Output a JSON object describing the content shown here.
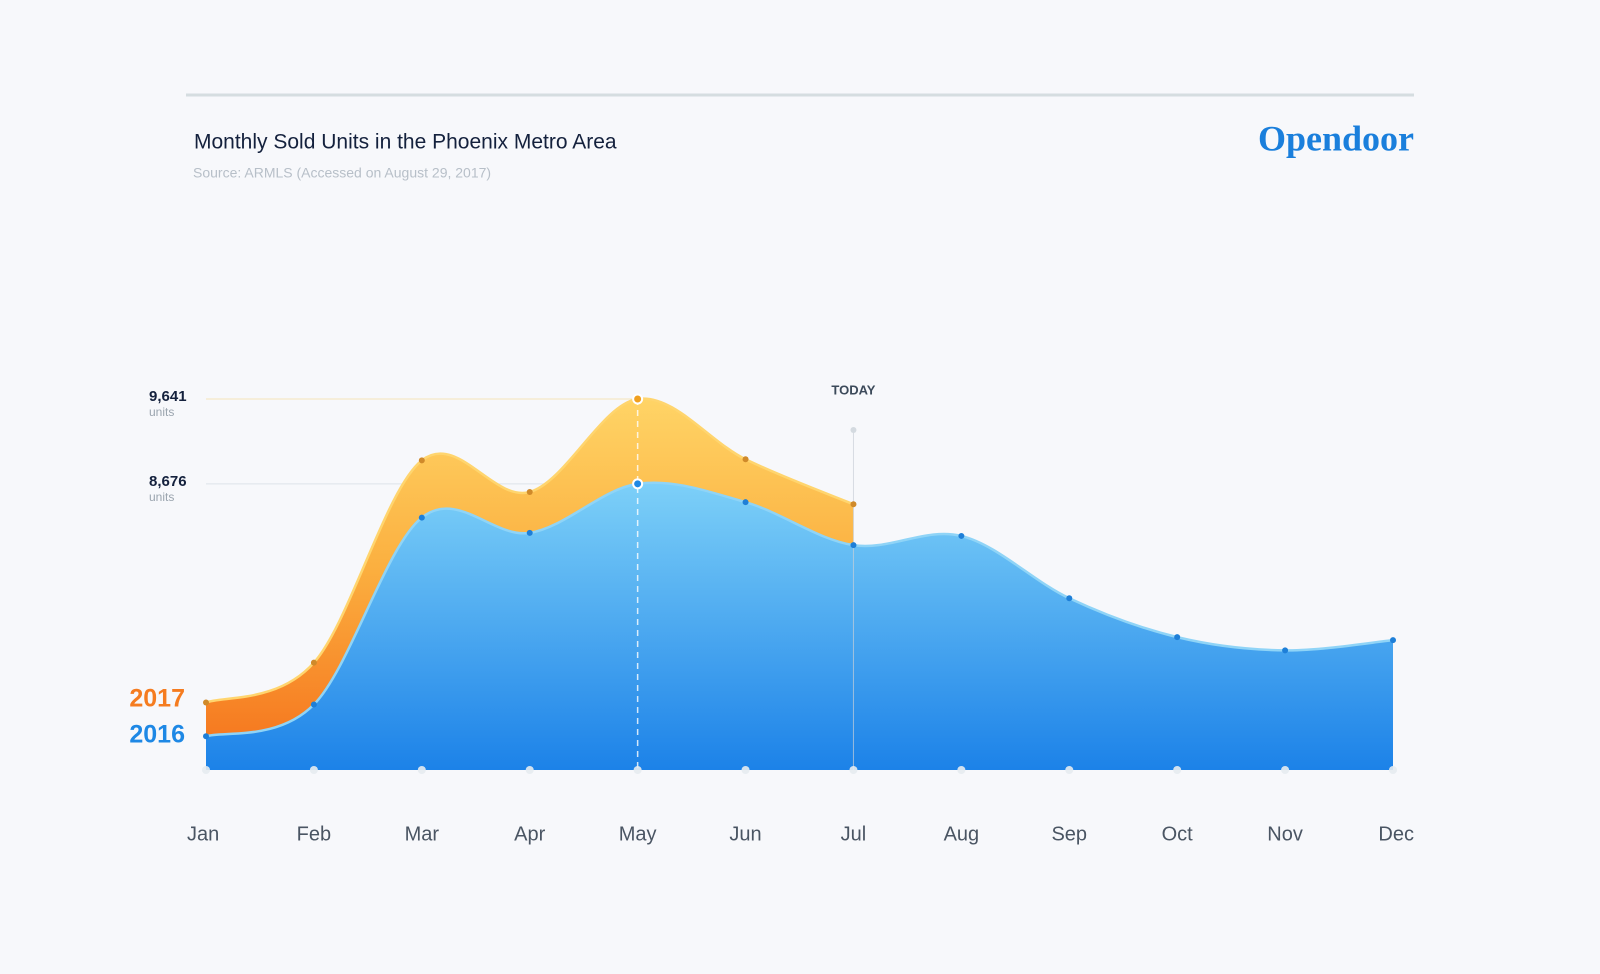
{
  "chart_data": {
    "type": "area",
    "title": "Monthly Sold Units in the Phoenix Metro Area",
    "subtitle": "Source: ARMLS (Accessed on August 29, 2017)",
    "brand": "Opendoor",
    "unit_label": "units",
    "annotation": {
      "label": "TODAY",
      "category": "Jul"
    },
    "highlight_category": "May",
    "categories": [
      "Jan",
      "Feb",
      "Mar",
      "Apr",
      "May",
      "Jun",
      "Jul",
      "Aug",
      "Sep",
      "Oct",
      "Nov",
      "Dec"
    ],
    "series": [
      {
        "name": "2017",
        "color": "#f57c20",
        "values": [
          6188,
          6641,
          8943,
          8583,
          9641,
          8955,
          8443,
          null,
          null,
          null,
          null,
          null
        ]
      },
      {
        "name": "2016",
        "color": "#1e88e5",
        "values": [
          5804,
          6165,
          8292,
          8118,
          8676,
          8467,
          7978,
          8083,
          7374,
          6932,
          6781,
          6897
        ]
      }
    ],
    "ylim": [
      5420,
      9641
    ],
    "yticks": [
      {
        "value": 9641,
        "label": "9,641"
      },
      {
        "value": 8676,
        "label": "8,676"
      }
    ]
  }
}
